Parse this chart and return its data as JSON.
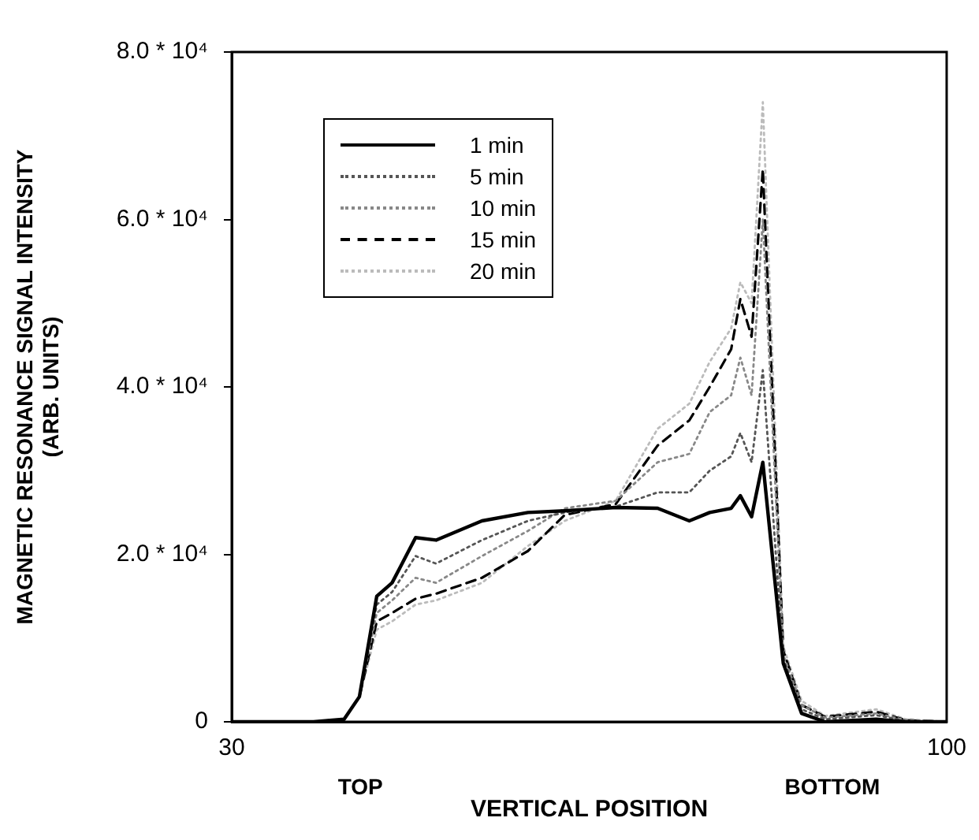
{
  "chart_data": {
    "type": "line",
    "xlabel": "VERTICAL POSITION",
    "ylabel": "MAGNETIC RESONANCE SIGNAL INTENSITY\n(ARB. UNITS)",
    "x": [
      30,
      38,
      41,
      42.5,
      44.2,
      45.7,
      48,
      50,
      54.5,
      59,
      62.6,
      67.6,
      71.7,
      74.8,
      76.8,
      78.9,
      79.8,
      80.9,
      82,
      84,
      85.8,
      88.1,
      93.1,
      96,
      100
    ],
    "series": [
      {
        "name": "1 min",
        "color": "#000000",
        "line_style": "solid",
        "values": [
          0,
          0,
          300,
          3000,
          15000,
          16600,
          22000,
          21700,
          24000,
          25000,
          25200,
          25600,
          25500,
          24000,
          25000,
          25500,
          27000,
          24500,
          31000,
          7000,
          1000,
          0,
          300,
          0,
          0
        ]
      },
      {
        "name": "5 min",
        "color": "#555555",
        "line_style": "dotted",
        "values": [
          0,
          0,
          300,
          3000,
          14000,
          15500,
          19800,
          18900,
          21700,
          24000,
          25000,
          25700,
          27400,
          27400,
          30000,
          31700,
          34500,
          31000,
          42000,
          7500,
          1500,
          300,
          800,
          100,
          0
        ]
      },
      {
        "name": "10 min",
        "color": "#888888",
        "line_style": "dotted",
        "values": [
          0,
          0,
          300,
          3000,
          13000,
          14500,
          17200,
          16600,
          19800,
          22800,
          25500,
          26400,
          31000,
          32000,
          37000,
          39000,
          43500,
          39000,
          60000,
          8000,
          2000,
          500,
          1000,
          200,
          0
        ]
      },
      {
        "name": "15 min",
        "color": "#000000",
        "line_style": "dashed",
        "values": [
          0,
          0,
          300,
          3000,
          12000,
          13000,
          14700,
          15300,
          17200,
          20400,
          24700,
          26000,
          33000,
          36000,
          40000,
          44500,
          50500,
          46000,
          66000,
          8500,
          2000,
          600,
          1200,
          200,
          0
        ]
      },
      {
        "name": "20 min",
        "color": "#bbbbbb",
        "line_style": "dotted",
        "values": [
          0,
          0,
          300,
          3000,
          11000,
          12000,
          14000,
          14500,
          16600,
          21000,
          24000,
          26400,
          35000,
          38000,
          43000,
          47000,
          52500,
          50000,
          74000,
          9000,
          2500,
          700,
          1500,
          300,
          0
        ]
      }
    ],
    "xlim": [
      30,
      100
    ],
    "xticks": [
      30,
      100
    ],
    "ylim": [
      0,
      80000
    ],
    "yticks": [
      0,
      {
        "value": 20000,
        "label": "2.0 * 10⁴"
      },
      {
        "value": 40000,
        "label": "4.0 * 10⁴"
      },
      {
        "value": 60000,
        "label": "6.0 * 10⁴"
      },
      {
        "value": 80000,
        "label": "8.0 * 10⁴"
      }
    ],
    "annotations": [
      "TOP",
      "BOTTOM"
    ],
    "grid": false,
    "legend": "top left",
    "marker": "none"
  }
}
